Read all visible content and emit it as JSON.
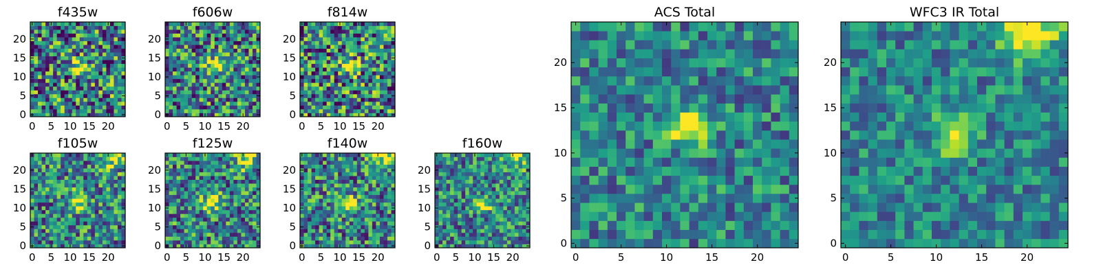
{
  "chart_data": [
    {
      "type": "heatmap",
      "title": "f435w",
      "grid": false,
      "colormap": "viridis",
      "xlim": [
        -0.5,
        24.5
      ],
      "ylim": [
        -0.5,
        24.5
      ],
      "xticks": [
        0,
        5,
        10,
        15,
        20
      ],
      "yticks": [
        0,
        5,
        10,
        15,
        20
      ],
      "noise": 0.55,
      "source": {
        "x": 12.5,
        "y": 13,
        "sigma": 1.6,
        "amp": 0.55
      },
      "seed": 11
    },
    {
      "type": "heatmap",
      "title": "f606w",
      "grid": false,
      "colormap": "viridis",
      "xlim": [
        -0.5,
        24.5
      ],
      "ylim": [
        -0.5,
        24.5
      ],
      "xticks": [
        0,
        5,
        10,
        15,
        20
      ],
      "yticks": [
        0,
        5,
        10,
        15,
        20
      ],
      "noise": 0.5,
      "source": {
        "x": 13,
        "y": 13,
        "sigma": 1.6,
        "amp": 0.6
      },
      "seed": 23
    },
    {
      "type": "heatmap",
      "title": "f814w",
      "grid": false,
      "colormap": "viridis",
      "xlim": [
        -0.5,
        24.5
      ],
      "ylim": [
        -0.5,
        24.5
      ],
      "xticks": [
        0,
        5,
        10,
        15,
        20
      ],
      "yticks": [
        0,
        5,
        10,
        15,
        20
      ],
      "noise": 0.55,
      "source": {
        "x": 13,
        "y": 12.5,
        "sigma": 1.6,
        "amp": 0.45
      },
      "seed": 37
    },
    {
      "type": "heatmap",
      "title": "f105w",
      "grid": false,
      "colormap": "viridis",
      "xlim": [
        -0.5,
        24.5
      ],
      "ylim": [
        -0.5,
        24.5
      ],
      "xticks": [
        0,
        5,
        10,
        15,
        20
      ],
      "yticks": [
        0,
        5,
        10,
        15,
        20
      ],
      "noise": 0.45,
      "source": {
        "x": 12.5,
        "y": 12,
        "sigma": 1.7,
        "amp": 0.55
      },
      "corner": {
        "x": 21,
        "y": 24,
        "sigma": 2.5,
        "amp": 0.5
      },
      "seed": 41
    },
    {
      "type": "heatmap",
      "title": "f125w",
      "grid": false,
      "colormap": "viridis",
      "xlim": [
        -0.5,
        24.5
      ],
      "ylim": [
        -0.5,
        24.5
      ],
      "xticks": [
        0,
        5,
        10,
        15,
        20
      ],
      "yticks": [
        0,
        5,
        10,
        15,
        20
      ],
      "noise": 0.45,
      "source": {
        "x": 12,
        "y": 11.5,
        "sigma": 1.8,
        "amp": 0.45
      },
      "corner": {
        "x": 21,
        "y": 24,
        "sigma": 2.5,
        "amp": 0.5
      },
      "seed": 53
    },
    {
      "type": "heatmap",
      "title": "f140w",
      "grid": false,
      "colormap": "viridis",
      "xlim": [
        -0.5,
        24.5
      ],
      "ylim": [
        -0.5,
        24.5
      ],
      "xticks": [
        0,
        5,
        10,
        15,
        20
      ],
      "yticks": [
        0,
        5,
        10,
        15,
        20
      ],
      "noise": 0.45,
      "source": {
        "x": 12.5,
        "y": 11.5,
        "sigma": 1.7,
        "amp": 0.45
      },
      "corner": {
        "x": 21,
        "y": 24,
        "sigma": 2.5,
        "amp": 0.55
      },
      "seed": 67
    },
    {
      "type": "heatmap",
      "title": "f160w",
      "grid": false,
      "colormap": "viridis",
      "xlim": [
        -0.5,
        24.5
      ],
      "ylim": [
        -0.5,
        24.5
      ],
      "xticks": [
        0,
        5,
        10,
        15,
        20
      ],
      "yticks": [
        0,
        5,
        10,
        15,
        20
      ],
      "noise": 0.4,
      "source": {
        "x": 12.5,
        "y": 11,
        "sigma": 1.4,
        "amp": 0.6
      },
      "corner": {
        "x": 21,
        "y": 24,
        "sigma": 2.5,
        "amp": 0.45
      },
      "seed": 79
    },
    {
      "type": "heatmap",
      "title": "ACS Total",
      "grid": false,
      "colormap": "viridis",
      "xlim": [
        -0.5,
        24.5
      ],
      "ylim": [
        -0.5,
        24.5
      ],
      "xticks": [
        0,
        5,
        10,
        15,
        20
      ],
      "yticks": [
        0,
        5,
        10,
        15,
        20
      ],
      "noise": 0.32,
      "source": {
        "x": 12.5,
        "y": 13,
        "sigma": 1.4,
        "amp": 0.75
      },
      "seed": 97
    },
    {
      "type": "heatmap",
      "title": "WFC3 IR Total",
      "grid": false,
      "colormap": "viridis",
      "xlim": [
        -0.5,
        24.5
      ],
      "ylim": [
        -0.5,
        24.5
      ],
      "xticks": [
        0,
        5,
        10,
        15,
        20
      ],
      "yticks": [
        0,
        5,
        10,
        15,
        20
      ],
      "noise": 0.28,
      "source": {
        "x": 12,
        "y": 12,
        "sigma": 1.5,
        "amp": 0.6
      },
      "corner": {
        "x": 20,
        "y": 24,
        "sigma": 2.2,
        "amp": 0.75
      },
      "seed": 113
    }
  ]
}
